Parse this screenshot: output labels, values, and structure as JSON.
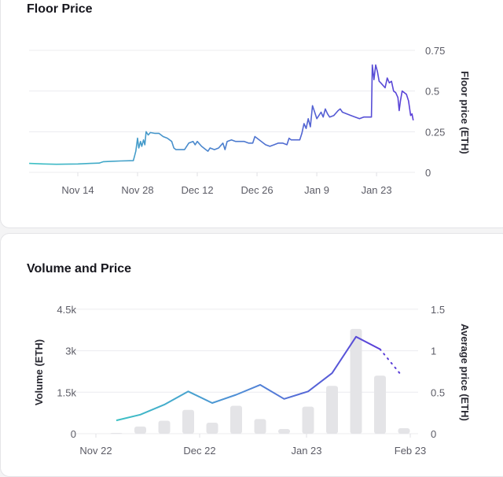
{
  "floor": {
    "title": "Floor Price"
  },
  "volume": {
    "title": "Volume and Price"
  },
  "chart_data": [
    {
      "type": "line",
      "title": "Floor Price",
      "ylabel": "Floor price (ETH)",
      "x_unit": "days since Nov 14",
      "xticks": [
        "Nov 14",
        "Nov 28",
        "Dec 12",
        "Dec 26",
        "Jan 9",
        "Jan 23"
      ],
      "xtick_days": [
        0,
        14,
        28,
        42,
        56,
        70
      ],
      "yticks": [
        "0",
        "0.25",
        "0.5",
        "0.75"
      ],
      "ylim": [
        0,
        0.75
      ],
      "grid": true,
      "colors": {
        "start": "#3cc1c4",
        "end": "#5b3fd8"
      },
      "points": [
        [
          -11.4,
          0.055
        ],
        [
          -8,
          0.052
        ],
        [
          -5,
          0.05
        ],
        [
          0,
          0.052
        ],
        [
          3,
          0.055
        ],
        [
          5,
          0.057
        ],
        [
          6,
          0.066
        ],
        [
          8,
          0.068
        ],
        [
          10,
          0.07
        ],
        [
          13,
          0.072
        ],
        [
          13.3,
          0.1
        ],
        [
          13.6,
          0.13
        ],
        [
          14,
          0.21
        ],
        [
          14.3,
          0.15
        ],
        [
          14.7,
          0.19
        ],
        [
          15,
          0.16
        ],
        [
          15.4,
          0.2
        ],
        [
          15.7,
          0.17
        ],
        [
          16,
          0.25
        ],
        [
          16.5,
          0.23
        ],
        [
          17,
          0.245
        ],
        [
          18,
          0.24
        ],
        [
          19,
          0.24
        ],
        [
          20,
          0.22
        ],
        [
          21,
          0.21
        ],
        [
          22,
          0.19
        ],
        [
          22.5,
          0.15
        ],
        [
          23,
          0.14
        ],
        [
          24,
          0.14
        ],
        [
          25,
          0.14
        ],
        [
          26,
          0.18
        ],
        [
          27,
          0.19
        ],
        [
          27.5,
          0.17
        ],
        [
          28,
          0.19
        ],
        [
          29,
          0.16
        ],
        [
          30,
          0.14
        ],
        [
          30.5,
          0.13
        ],
        [
          31,
          0.15
        ],
        [
          32,
          0.14
        ],
        [
          33,
          0.15
        ],
        [
          34,
          0.18
        ],
        [
          34.5,
          0.14
        ],
        [
          35,
          0.19
        ],
        [
          36,
          0.2
        ],
        [
          37,
          0.19
        ],
        [
          38,
          0.19
        ],
        [
          39,
          0.19
        ],
        [
          40,
          0.18
        ],
        [
          41,
          0.18
        ],
        [
          41.5,
          0.22
        ],
        [
          42,
          0.21
        ],
        [
          43,
          0.19
        ],
        [
          44,
          0.17
        ],
        [
          45,
          0.16
        ],
        [
          46,
          0.17
        ],
        [
          47,
          0.18
        ],
        [
          48,
          0.18
        ],
        [
          49,
          0.17
        ],
        [
          49.5,
          0.21
        ],
        [
          50,
          0.2
        ],
        [
          51,
          0.2
        ],
        [
          52,
          0.2
        ],
        [
          52.5,
          0.24
        ],
        [
          53,
          0.3
        ],
        [
          53.5,
          0.27
        ],
        [
          54,
          0.33
        ],
        [
          54.5,
          0.28
        ],
        [
          55,
          0.41
        ],
        [
          55.5,
          0.37
        ],
        [
          56,
          0.33
        ],
        [
          57,
          0.37
        ],
        [
          57.5,
          0.34
        ],
        [
          58,
          0.39
        ],
        [
          58.5,
          0.36
        ],
        [
          59,
          0.34
        ],
        [
          60,
          0.35
        ],
        [
          61,
          0.38
        ],
        [
          61.5,
          0.39
        ],
        [
          62,
          0.37
        ],
        [
          63,
          0.36
        ],
        [
          64,
          0.35
        ],
        [
          65,
          0.34
        ],
        [
          66,
          0.33
        ],
        [
          67,
          0.34
        ],
        [
          68,
          0.34
        ],
        [
          68.8,
          0.34
        ],
        [
          69,
          0.66
        ],
        [
          69.4,
          0.57
        ],
        [
          69.8,
          0.66
        ],
        [
          70.2,
          0.62
        ],
        [
          70.6,
          0.56
        ],
        [
          71,
          0.55
        ],
        [
          72,
          0.52
        ],
        [
          72.5,
          0.58
        ],
        [
          73,
          0.55
        ],
        [
          73.5,
          0.56
        ],
        [
          74,
          0.5
        ],
        [
          74.5,
          0.49
        ],
        [
          75,
          0.46
        ],
        [
          75.3,
          0.38
        ],
        [
          75.6,
          0.44
        ],
        [
          76,
          0.5
        ],
        [
          76.5,
          0.49
        ],
        [
          77,
          0.48
        ],
        [
          77.5,
          0.44
        ],
        [
          78,
          0.35
        ],
        [
          78.3,
          0.36
        ],
        [
          78.6,
          0.32
        ]
      ]
    },
    {
      "type": "bar+line",
      "title": "Volume and Price",
      "ylabel": "Volume (ETH)",
      "y2label": "Average price (ETH)",
      "xticks": [
        "Nov 22",
        "Dec 22",
        "Jan 23",
        "Feb 23"
      ],
      "yticks": [
        "0",
        "1.5k",
        "3k",
        "4.5k"
      ],
      "y2ticks": [
        "0",
        "0.5",
        "1",
        "1.5"
      ],
      "ylim": [
        0,
        4500
      ],
      "y2lim": [
        0,
        1.5
      ],
      "grid": true,
      "series": [
        {
          "name": "Volume (ETH)",
          "type": "bar",
          "color": "#e4e4e7",
          "values": [
            30,
            260,
            470,
            860,
            400,
            1010,
            530,
            170,
            980,
            1730,
            3790,
            2100,
            200
          ]
        },
        {
          "name": "Average price (ETH)",
          "type": "line",
          "values": [
            0.16,
            0.23,
            0.35,
            0.51,
            0.37,
            0.47,
            0.59,
            0.42,
            0.51,
            0.73,
            1.17,
            1.02
          ],
          "projected_end": 0.69
        }
      ]
    }
  ]
}
